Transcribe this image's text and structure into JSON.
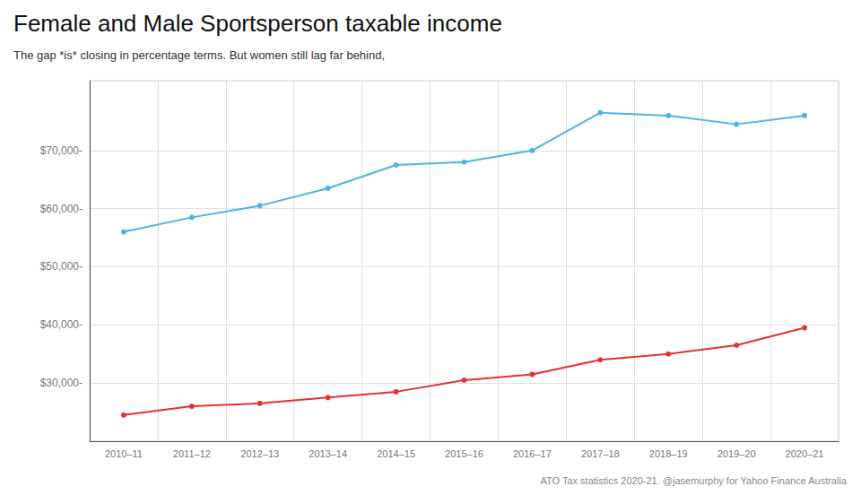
{
  "chart_data": {
    "type": "line",
    "title": "Female and Male Sportsperson taxable income",
    "subtitle": "The gap *is* closing in percentage terms. But women still lag far behind,",
    "annotations": [
      "ATO Tax statistics 2020-21. @jasemurphy for Yahoo Finance Australia"
    ],
    "categories": [
      "2010–11",
      "2011–12",
      "2012–13",
      "2013–14",
      "2014–15",
      "2015–16",
      "2016–17",
      "2017–18",
      "2018–19",
      "2019–20",
      "2020–21"
    ],
    "series": [
      {
        "color": "#4db3e6",
        "values": [
          56000,
          58500,
          60500,
          63500,
          67500,
          68000,
          70000,
          76500,
          76000,
          74500,
          76000
        ]
      },
      {
        "color": "#e83030",
        "values": [
          24500,
          26000,
          26500,
          27500,
          28500,
          30500,
          31500,
          34000,
          35000,
          36500,
          39500
        ]
      }
    ],
    "ylim": [
      20000,
      82000
    ],
    "yticks": [
      {
        "value": 30000,
        "label": "$30,000-"
      },
      {
        "value": 40000,
        "label": "$40,000-"
      },
      {
        "value": 50000,
        "label": "$50,000-"
      },
      {
        "value": 60000,
        "label": "$60,000-"
      },
      {
        "value": 70000,
        "label": "$70,000-"
      }
    ],
    "marker": "circle",
    "grid": true
  }
}
